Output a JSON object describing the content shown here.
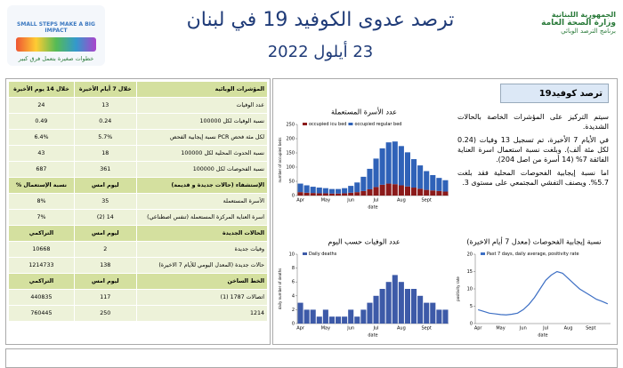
{
  "header": {
    "title": "ترصد عدوى الكوفيد 19 في لبنان",
    "date": "23 أيلول 2022",
    "left_logo": {
      "line1": "SMALL STEPS MAKE A BIG IMPACT",
      "line2": "خطوات صغيرة بتعمل فرق كبير"
    },
    "right_logo": {
      "line1": "الجمهورية اللبنانية",
      "line2": "وزارة الصحة العامة",
      "line3": "برنامج الترصد الوبائي"
    }
  },
  "table": {
    "sections": [
      {
        "header": [
          "خلال 14 يوم الأخيرة",
          "خلال 7 أيام الأخيرة",
          "المؤشرات الوبائية"
        ],
        "rows": [
          [
            "24",
            "13",
            "عدد الوفيات"
          ],
          [
            "0.49",
            "0.24",
            "نسبة الوفيات لكل 100000"
          ],
          [
            "6.4%",
            "5.7%",
            "نسبة إيجابية الفحص PCR لكل مئة فحص"
          ],
          [
            "43",
            "18",
            "نسبة الحدوث المحلية لكل 100000"
          ],
          [
            "687",
            "361",
            "نسبة الفحوصات لكل 100000"
          ]
        ]
      },
      {
        "header": [
          "% نسبة الإستعمال",
          "ليوم امس",
          "الإستشفاء (حالات جديدة و قديمة)"
        ],
        "rows": [
          [
            "8%",
            "35",
            "الأسرة المستعملة"
          ],
          [
            "7%",
            "(2) 14",
            "اسرة العناية المركزة المستعملة (تنفس اصطناعي)"
          ]
        ]
      },
      {
        "header": [
          "التراكمي",
          "ليوم امس",
          "الحالات الجديدة"
        ],
        "rows": [
          [
            "10668",
            "2",
            "وفيات جديدة"
          ],
          [
            "1214733",
            "138",
            "حالات جديدة (المعدل اليومي للأيام 7 الاخيرة)"
          ]
        ]
      },
      {
        "header": [
          "التراكمي",
          "ليوم امس",
          "الخط الساخن"
        ],
        "rows": [
          [
            "440835",
            "117",
            "اتصالات 1787 (1)"
          ],
          [
            "760445",
            "250",
            "1214"
          ]
        ]
      }
    ]
  },
  "panel": {
    "title": "ترصد كوفيد19",
    "paragraphs": [
      "سيتم التركيز على المؤشرات الخاصة بالحالات الشديدة.",
      "في الأيام 7 الأخيرة، تم تسجيل 13 وفيات (0.24 لكل مئة ألف). وبلغت نسبة استعمال اسرة العناية الفائقة 7% (14 أسرة من اصل 204).",
      "اما نسبة إيجابية الفحوصات المحلية فقد بلغت 5.7%. ويصنف التفشي المجتمعي على مستوى 3."
    ]
  },
  "chart_data": [
    {
      "type": "stacked_bar",
      "title": "عدد الأسرة المستعملة",
      "xlabel": "date",
      "ylabel": "number of occupied beds",
      "categories": [
        "Apr",
        null,
        null,
        null,
        "May",
        null,
        null,
        null,
        "Jun",
        null,
        null,
        null,
        "Jul",
        null,
        null,
        null,
        "Aug",
        null,
        null,
        null,
        "Sept",
        null,
        null,
        null
      ],
      "series": [
        {
          "name": "occupied icu bed",
          "color": "#8b1a1a",
          "values": [
            12,
            10,
            9,
            8,
            8,
            7,
            7,
            8,
            10,
            12,
            16,
            22,
            30,
            38,
            42,
            40,
            36,
            32,
            28,
            24,
            20,
            18,
            16,
            14
          ]
        },
        {
          "name": "occupied regular bed",
          "color": "#2f62b8",
          "values": [
            30,
            26,
            22,
            20,
            18,
            16,
            16,
            18,
            24,
            34,
            50,
            72,
            100,
            128,
            145,
            150,
            138,
            120,
            100,
            82,
            66,
            54,
            46,
            40
          ]
        }
      ],
      "ylim": [
        0,
        250
      ],
      "yticks": [
        0,
        50,
        100,
        150,
        200,
        250
      ]
    },
    {
      "type": "bar",
      "title": "عدد الوفيات حسب اليوم",
      "xlabel": "date",
      "ylabel": "daily number of deaths",
      "categories": [
        "Apr",
        null,
        null,
        null,
        "May",
        null,
        null,
        null,
        "Jun",
        null,
        null,
        null,
        "Jul",
        null,
        null,
        null,
        "Aug",
        null,
        null,
        null,
        "Sept",
        null,
        null,
        null
      ],
      "series": [
        {
          "name": "Daily deaths",
          "color": "#3d5aa8",
          "values": [
            3,
            2,
            2,
            1,
            2,
            1,
            1,
            1,
            2,
            1,
            2,
            3,
            4,
            5,
            6,
            7,
            6,
            5,
            5,
            4,
            3,
            3,
            2,
            2
          ]
        }
      ],
      "ylim": [
        0,
        10
      ],
      "yticks": [
        0,
        2,
        4,
        6,
        8,
        10
      ]
    },
    {
      "type": "line",
      "title": "نسبة إيجابية الفحوصات (معدل 7 أيام الاخيرة)",
      "xlabel": "date",
      "ylabel": "positivity rate",
      "categories": [
        "Apr",
        null,
        null,
        null,
        "May",
        null,
        null,
        null,
        "Jun",
        null,
        null,
        null,
        "Jul",
        null,
        null,
        null,
        "Aug",
        null,
        null,
        null,
        "Sept",
        null,
        null,
        null
      ],
      "series": [
        {
          "name": "Past 7 days, daily average, positivity rate",
          "color": "#3d6fc4",
          "values": [
            4,
            3.5,
            3,
            2.8,
            2.6,
            2.5,
            2.7,
            3,
            4,
            5.5,
            7.5,
            10,
            12.5,
            14,
            15,
            14.5,
            13,
            11.5,
            10,
            9,
            8,
            7,
            6.4,
            5.7
          ]
        }
      ],
      "ylim": [
        0,
        20
      ],
      "yticks": [
        0,
        5,
        10,
        15,
        20
      ]
    }
  ]
}
